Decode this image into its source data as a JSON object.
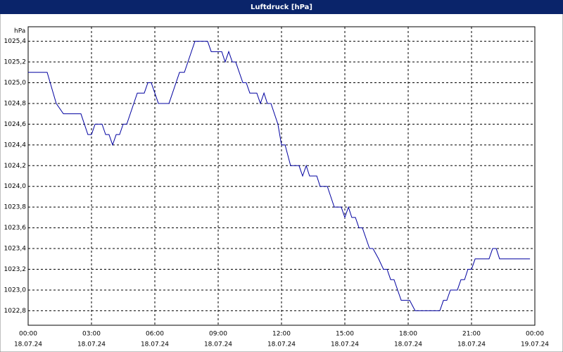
{
  "chart_data": {
    "type": "line",
    "title": "Luftdruck [hPa]",
    "y_label": "hPa",
    "color": "#0000a0",
    "grid": true,
    "x": [
      0,
      0.9,
      1.33,
      1.67,
      2.5,
      2.83,
      3.0,
      3.17,
      3.5,
      3.67,
      3.83,
      4.0,
      4.17,
      4.33,
      4.5,
      4.67,
      5.17,
      5.5,
      5.67,
      5.83,
      6.17,
      6.67,
      7.17,
      7.4,
      7.9,
      8.5,
      8.67,
      9.17,
      9.33,
      9.5,
      9.67,
      9.83,
      10.17,
      10.33,
      10.5,
      10.83,
      11.0,
      11.17,
      11.33,
      11.5,
      11.83,
      12.0,
      12.17,
      12.43,
      12.83,
      13.0,
      13.17,
      13.33,
      13.67,
      13.83,
      14.17,
      14.5,
      14.83,
      15.0,
      15.17,
      15.33,
      15.5,
      15.67,
      15.83,
      16.17,
      16.33,
      16.6,
      16.83,
      17.0,
      17.17,
      17.33,
      17.67,
      18.07,
      18.33,
      19.5,
      19.67,
      19.83,
      20.0,
      20.33,
      20.5,
      20.67,
      20.83,
      21.0,
      21.17,
      21.83,
      22.0,
      22.17,
      22.33,
      23.77
    ],
    "series": [
      {
        "name": "Luftdruck",
        "values": [
          1025.1,
          1025.1,
          1024.8,
          1024.7,
          1024.7,
          1024.5,
          1024.5,
          1024.6,
          1024.6,
          1024.5,
          1024.5,
          1024.4,
          1024.5,
          1024.5,
          1024.6,
          1024.6,
          1024.9,
          1024.9,
          1025.0,
          1025.0,
          1024.8,
          1024.8,
          1025.1,
          1025.1,
          1025.4,
          1025.4,
          1025.3,
          1025.3,
          1025.2,
          1025.3,
          1025.2,
          1025.2,
          1025.0,
          1025.0,
          1024.9,
          1024.9,
          1024.8,
          1024.9,
          1024.8,
          1024.8,
          1024.6,
          1024.4,
          1024.4,
          1024.2,
          1024.2,
          1024.1,
          1024.2,
          1024.1,
          1024.1,
          1024.0,
          1024.0,
          1023.8,
          1023.8,
          1023.7,
          1023.8,
          1023.7,
          1023.7,
          1023.6,
          1023.6,
          1023.4,
          1023.4,
          1023.3,
          1023.2,
          1023.2,
          1023.1,
          1023.1,
          1022.9,
          1022.9,
          1022.8,
          1022.8,
          1022.9,
          1022.9,
          1023.0,
          1023.0,
          1023.1,
          1023.1,
          1023.2,
          1023.2,
          1023.3,
          1023.3,
          1023.4,
          1023.4,
          1023.3,
          1023.3
        ]
      }
    ],
    "xlim": [
      0,
      24
    ],
    "xticks": [
      {
        "value": 0,
        "label": "00:00",
        "date": "18.07.24"
      },
      {
        "value": 3,
        "label": "03:00",
        "date": "18.07.24"
      },
      {
        "value": 6,
        "label": "06:00",
        "date": "18.07.24"
      },
      {
        "value": 9,
        "label": "09:00",
        "date": "18.07.24"
      },
      {
        "value": 12,
        "label": "12:00",
        "date": "18.07.24"
      },
      {
        "value": 15,
        "label": "15:00",
        "date": "18.07.24"
      },
      {
        "value": 18,
        "label": "18:00",
        "date": "18.07.24"
      },
      {
        "value": 21,
        "label": "21:00",
        "date": "18.07.24"
      },
      {
        "value": 24,
        "label": "00:00",
        "date": "19.07.24"
      }
    ],
    "ylim": [
      1022.66,
      1025.54
    ],
    "yticks": [
      {
        "value": 1022.8,
        "label": "1022,8"
      },
      {
        "value": 1023.0,
        "label": "1023,0"
      },
      {
        "value": 1023.2,
        "label": "1023,2"
      },
      {
        "value": 1023.4,
        "label": "1023,4"
      },
      {
        "value": 1023.6,
        "label": "1023,6"
      },
      {
        "value": 1023.8,
        "label": "1023,8"
      },
      {
        "value": 1024.0,
        "label": "1024,0"
      },
      {
        "value": 1024.2,
        "label": "1024,2"
      },
      {
        "value": 1024.4,
        "label": "1024,4"
      },
      {
        "value": 1024.6,
        "label": "1024,6"
      },
      {
        "value": 1024.8,
        "label": "1024,8"
      },
      {
        "value": 1025.0,
        "label": "1025,0"
      },
      {
        "value": 1025.2,
        "label": "1025,2"
      },
      {
        "value": 1025.4,
        "label": "1025,4"
      }
    ]
  }
}
